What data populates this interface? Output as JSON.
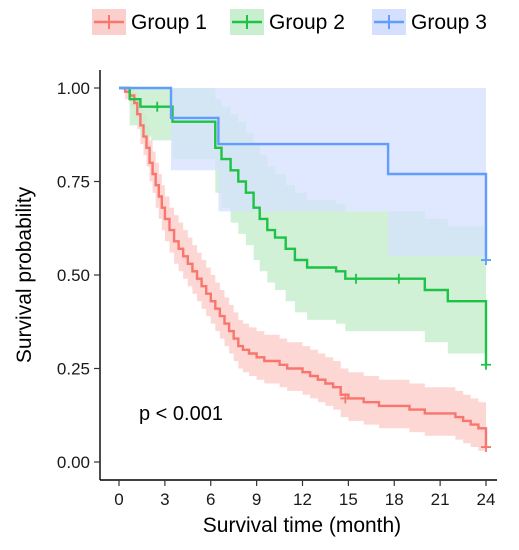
{
  "chart_data": {
    "type": "line",
    "subtype": "kaplan-meier",
    "title": "",
    "xlabel": "Survival time (month)",
    "ylabel": "Survival probability",
    "xlim": [
      0,
      24
    ],
    "ylim": [
      0,
      1
    ],
    "x_ticks": [
      0,
      3,
      6,
      9,
      12,
      15,
      18,
      21,
      24
    ],
    "x_tick_labels": [
      "0",
      "3",
      "6",
      "9",
      "12",
      "15",
      "18",
      "21",
      "24"
    ],
    "y_ticks": [
      0,
      0.25,
      0.5,
      0.75,
      1.0
    ],
    "y_tick_labels": [
      "0.00",
      "0.25",
      "0.50",
      "0.75",
      "1.00"
    ],
    "grid": false,
    "legend_position": "top",
    "annotation": "p < 0.001",
    "series": [
      {
        "name": "Group 1",
        "color": "#f8766d",
        "band_color": "#fbd0cc",
        "x": [
          0,
          0.4,
          0.7,
          1.0,
          1.2,
          1.4,
          1.6,
          1.8,
          2.0,
          2.2,
          2.4,
          2.6,
          2.8,
          3.0,
          3.3,
          3.6,
          3.9,
          4.2,
          4.5,
          4.8,
          5.1,
          5.4,
          5.7,
          6.0,
          6.3,
          6.6,
          6.9,
          7.2,
          7.5,
          7.8,
          8.1,
          8.5,
          9.0,
          9.5,
          10.0,
          10.5,
          11.0,
          11.5,
          12.0,
          12.5,
          13.0,
          13.5,
          14.0,
          14.5,
          15.0,
          15.5,
          16.0,
          17.0,
          18.0,
          19.0,
          20.0,
          21.0,
          22.0,
          22.5,
          23.0,
          23.5,
          24.0
        ],
        "y": [
          1.0,
          0.99,
          0.98,
          0.96,
          0.93,
          0.9,
          0.87,
          0.84,
          0.8,
          0.77,
          0.74,
          0.71,
          0.68,
          0.65,
          0.62,
          0.59,
          0.57,
          0.55,
          0.53,
          0.51,
          0.49,
          0.47,
          0.45,
          0.43,
          0.41,
          0.39,
          0.37,
          0.35,
          0.33,
          0.31,
          0.3,
          0.29,
          0.28,
          0.27,
          0.27,
          0.26,
          0.25,
          0.25,
          0.24,
          0.23,
          0.22,
          0.21,
          0.2,
          0.18,
          0.17,
          0.17,
          0.16,
          0.15,
          0.15,
          0.14,
          0.13,
          0.13,
          0.12,
          0.11,
          0.1,
          0.09,
          0.04
        ],
        "lower": [
          1.0,
          0.97,
          0.95,
          0.92,
          0.89,
          0.85,
          0.82,
          0.79,
          0.75,
          0.72,
          0.68,
          0.65,
          0.62,
          0.59,
          0.56,
          0.53,
          0.51,
          0.49,
          0.47,
          0.45,
          0.43,
          0.41,
          0.39,
          0.37,
          0.35,
          0.33,
          0.31,
          0.29,
          0.27,
          0.25,
          0.24,
          0.23,
          0.22,
          0.21,
          0.21,
          0.2,
          0.19,
          0.19,
          0.18,
          0.17,
          0.16,
          0.15,
          0.14,
          0.12,
          0.11,
          0.11,
          0.1,
          0.09,
          0.09,
          0.08,
          0.07,
          0.07,
          0.06,
          0.05,
          0.04,
          0.03,
          0.02
        ],
        "upper": [
          1.0,
          1.0,
          1.0,
          0.99,
          0.97,
          0.95,
          0.93,
          0.9,
          0.86,
          0.83,
          0.8,
          0.77,
          0.74,
          0.71,
          0.68,
          0.66,
          0.64,
          0.62,
          0.6,
          0.58,
          0.56,
          0.54,
          0.52,
          0.5,
          0.48,
          0.46,
          0.44,
          0.42,
          0.4,
          0.38,
          0.37,
          0.36,
          0.35,
          0.34,
          0.34,
          0.33,
          0.32,
          0.32,
          0.31,
          0.3,
          0.29,
          0.28,
          0.27,
          0.25,
          0.24,
          0.24,
          0.23,
          0.22,
          0.22,
          0.21,
          0.2,
          0.2,
          0.19,
          0.18,
          0.17,
          0.16,
          0.16
        ],
        "censor_x": [
          14.8,
          24.0
        ],
        "censor_y": [
          0.17,
          0.04
        ]
      },
      {
        "name": "Group 2",
        "color": "#1ec246",
        "band_color": "#c9efd0",
        "x": [
          0,
          0.7,
          1.4,
          2.1,
          3.5,
          6.3,
          6.7,
          7.3,
          7.8,
          8.3,
          8.8,
          9.2,
          9.7,
          10.2,
          10.9,
          11.5,
          11.9,
          12.3,
          14.2,
          14.8,
          20.0,
          21.5,
          24.0
        ],
        "y": [
          1.0,
          0.97,
          0.95,
          0.95,
          0.91,
          0.84,
          0.81,
          0.78,
          0.75,
          0.72,
          0.68,
          0.65,
          0.62,
          0.6,
          0.57,
          0.54,
          0.54,
          0.52,
          0.51,
          0.49,
          0.46,
          0.43,
          0.26
        ],
        "lower": [
          1.0,
          0.9,
          0.87,
          0.86,
          0.81,
          0.72,
          0.68,
          0.64,
          0.61,
          0.58,
          0.54,
          0.51,
          0.48,
          0.46,
          0.43,
          0.4,
          0.4,
          0.38,
          0.37,
          0.35,
          0.32,
          0.29,
          0.29
        ],
        "upper": [
          1.0,
          1.0,
          1.0,
          1.0,
          1.0,
          0.97,
          0.95,
          0.93,
          0.91,
          0.88,
          0.85,
          0.82,
          0.79,
          0.77,
          0.74,
          0.72,
          0.72,
          0.7,
          0.69,
          0.67,
          0.65,
          0.63,
          0.63
        ],
        "censor_x": [
          2.5,
          15.5,
          18.3,
          24.0
        ],
        "censor_y": [
          0.95,
          0.49,
          0.49,
          0.26
        ]
      },
      {
        "name": "Group 3",
        "color": "#619cff",
        "band_color": "#d4e0fd",
        "x": [
          0,
          3.4,
          6.5,
          17.6,
          24.0
        ],
        "y": [
          1.0,
          0.92,
          0.85,
          0.77,
          0.54
        ],
        "lower": [
          1.0,
          0.78,
          0.67,
          0.55,
          0.55
        ],
        "upper": [
          1.0,
          1.0,
          1.0,
          1.0,
          1.0
        ],
        "censor_x": [
          24.0
        ],
        "censor_y": [
          0.54
        ]
      }
    ]
  }
}
